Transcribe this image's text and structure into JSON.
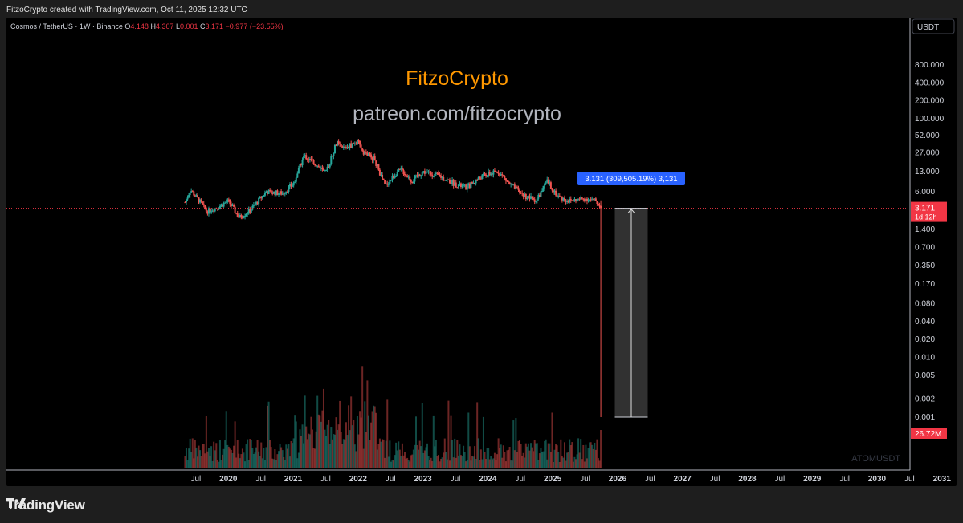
{
  "attribution": "FitzoCrypto created with TradingView.com, Oct 11, 2025 12:32 UTC",
  "footer_brand": "TradingView",
  "chart_data": {
    "type": "candlestick",
    "symbol_line": {
      "pair": "Cosmos / TetherUS · 1W · Binance",
      "o_label": "O",
      "o": "4.148",
      "h_label": "H",
      "h": "4.307",
      "l_label": "L",
      "l": "0.001",
      "c_label": "C",
      "c": "3.171",
      "change": "−0.977 (−23.55%)"
    },
    "watermark": {
      "title": "FitzoCrypto",
      "subtitle": "patreon.com/fitzocrypto"
    },
    "currency_button": "USDT",
    "y_scale": "log",
    "y_ticks": [
      "800.000",
      "400.000",
      "200.000",
      "100.000",
      "52.000",
      "27.000",
      "13.000",
      "6.000",
      "1.400",
      "0.700",
      "0.350",
      "0.170",
      "0.080",
      "0.040",
      "0.020",
      "0.010",
      "0.005",
      "0.002",
      "0.001"
    ],
    "x_ticks": [
      "Jul",
      "2020",
      "Jul",
      "2021",
      "Jul",
      "2022",
      "Jul",
      "2023",
      "Jul",
      "2024",
      "Jul",
      "2025",
      "Jul",
      "2026",
      "Jul",
      "2027",
      "Jul",
      "2028",
      "Jul",
      "2029",
      "Jul",
      "2030",
      "Jul",
      "2031"
    ],
    "last_price": {
      "value": "3.171",
      "countdown": "1d 12h"
    },
    "measure_label": "3.131 (309,505.19%) 3,131",
    "volume_label": "26.72M",
    "symbol_watermark": "ATOMUSDT",
    "price_path_anchors": [
      {
        "x": "2019-05",
        "y": 4.0
      },
      {
        "x": "2019-06",
        "y": 6.5
      },
      {
        "x": "2019-08",
        "y": 3.8
      },
      {
        "x": "2019-09",
        "y": 2.8
      },
      {
        "x": "2019-11",
        "y": 3.3
      },
      {
        "x": "2020-01",
        "y": 4.2
      },
      {
        "x": "2020-03",
        "y": 2.2
      },
      {
        "x": "2020-05",
        "y": 2.9
      },
      {
        "x": "2020-08",
        "y": 6.0
      },
      {
        "x": "2020-11",
        "y": 5.6
      },
      {
        "x": "2021-01",
        "y": 8.0
      },
      {
        "x": "2021-03",
        "y": 24
      },
      {
        "x": "2021-05",
        "y": 18
      },
      {
        "x": "2021-07",
        "y": 12
      },
      {
        "x": "2021-09",
        "y": 40
      },
      {
        "x": "2021-10",
        "y": 32
      },
      {
        "x": "2022-01",
        "y": 40
      },
      {
        "x": "2022-02",
        "y": 28
      },
      {
        "x": "2022-04",
        "y": 21
      },
      {
        "x": "2022-06",
        "y": 7.5
      },
      {
        "x": "2022-08",
        "y": 12
      },
      {
        "x": "2022-09",
        "y": 14
      },
      {
        "x": "2022-11",
        "y": 9
      },
      {
        "x": "2023-01",
        "y": 13
      },
      {
        "x": "2023-04",
        "y": 11
      },
      {
        "x": "2023-07",
        "y": 8
      },
      {
        "x": "2023-09",
        "y": 7
      },
      {
        "x": "2023-12",
        "y": 11
      },
      {
        "x": "2024-03",
        "y": 13
      },
      {
        "x": "2024-05",
        "y": 8
      },
      {
        "x": "2024-08",
        "y": 5
      },
      {
        "x": "2024-10",
        "y": 4.3
      },
      {
        "x": "2024-12",
        "y": 9
      },
      {
        "x": "2025-02",
        "y": 5
      },
      {
        "x": "2025-04",
        "y": 4.2
      },
      {
        "x": "2025-07",
        "y": 4.6
      },
      {
        "x": "2025-09",
        "y": 4.2
      },
      {
        "x": "2025-10",
        "y": 3.171
      }
    ],
    "flash_crash_low": 0.001,
    "colors": {
      "up": "#26a69a",
      "down": "#ef5350",
      "measure": "#2962ff",
      "price_line": "#f23645"
    }
  }
}
